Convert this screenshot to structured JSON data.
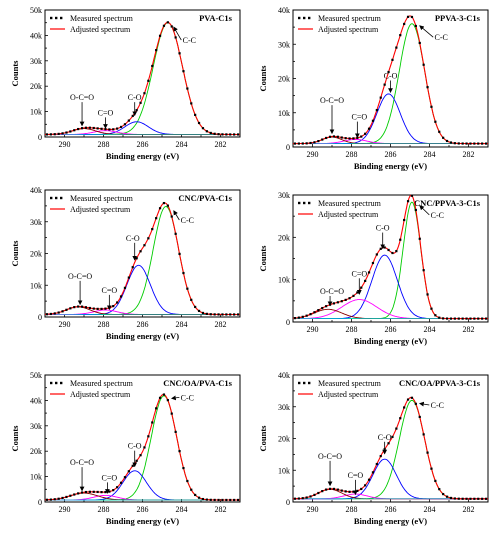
{
  "figure": {
    "panels": [
      "PVA-C1s",
      "PPVA-3-C1s",
      "CNC/PVA-C1s",
      "CNC/PPVA-3-C1s",
      "CNC/OA/PVA-C1s",
      "CNC/OA/PPVA-3-C1s"
    ]
  },
  "chart_data": [
    {
      "type": "line",
      "title": "PVA-C1s",
      "xlabel": "Binding energy (eV)",
      "ylabel": "Counts",
      "xlim": [
        291,
        281
      ],
      "ylim": [
        0,
        50000
      ],
      "xticks": [
        "290",
        "288",
        "286",
        "284",
        "282"
      ],
      "yticks": [
        "0",
        "10k",
        "20k",
        "30k",
        "40k",
        "50k"
      ],
      "legend": [
        "Measured spectrum",
        "Adjusted spectrum"
      ],
      "legend_position": "top-left",
      "baseline": 1000,
      "peaks": [
        {
          "name": "C-C",
          "center": 284.7,
          "height": 44000,
          "width": 0.75,
          "color": "#00cc00"
        },
        {
          "name": "C-O",
          "center": 286.3,
          "height": 5000,
          "width": 0.6,
          "color": "#0000ff"
        },
        {
          "name": "C=O",
          "center": 287.9,
          "height": 1500,
          "width": 0.6,
          "color": "#ff00ff"
        },
        {
          "name": "O-C=O",
          "center": 289.0,
          "height": 2300,
          "width": 0.6,
          "color": "#8b0000"
        }
      ],
      "annotations": [
        "C-C",
        "C-O",
        "C=O",
        "O-C=O"
      ]
    },
    {
      "type": "line",
      "title": "PPVA-3-C1s",
      "xlabel": "Binding energy (eV)",
      "ylabel": "Counts",
      "xlim": [
        291,
        281
      ],
      "ylim": [
        0,
        40000
      ],
      "xticks": [
        "290",
        "288",
        "286",
        "284",
        "282"
      ],
      "yticks": [
        "0",
        "10k",
        "20k",
        "30k",
        "40k"
      ],
      "legend": [
        "Measured spectrum",
        "Adjusted spectrum"
      ],
      "legend_position": "top-left",
      "baseline": 1000,
      "peaks": [
        {
          "name": "C-C",
          "center": 284.9,
          "height": 35000,
          "width": 0.65,
          "color": "#00cc00"
        },
        {
          "name": "C-O",
          "center": 286.1,
          "height": 14500,
          "width": 0.6,
          "color": "#0000ff"
        },
        {
          "name": "C=O",
          "center": 287.8,
          "height": 1200,
          "width": 0.6,
          "color": "#ff00ff"
        },
        {
          "name": "O-C=O",
          "center": 289.0,
          "height": 1900,
          "width": 0.5,
          "color": "#8b0000"
        }
      ],
      "annotations": [
        "C-C",
        "C-O",
        "C=O",
        "O-C=O"
      ]
    },
    {
      "type": "line",
      "title": "CNC/PVA-C1s",
      "xlabel": "Binding energy (eV)",
      "ylabel": "Counts",
      "xlim": [
        291,
        281
      ],
      "ylim": [
        0,
        40000
      ],
      "xticks": [
        "290",
        "288",
        "286",
        "284",
        "282"
      ],
      "yticks": [
        "0",
        "10k",
        "20k",
        "30k",
        "40k"
      ],
      "legend": [
        "Measured spectrum",
        "Adjusted spectrum"
      ],
      "legend_position": "top-left",
      "baseline": 800,
      "peaks": [
        {
          "name": "C-C",
          "center": 284.8,
          "height": 34000,
          "width": 0.65,
          "color": "#00cc00"
        },
        {
          "name": "C-O",
          "center": 286.2,
          "height": 15500,
          "width": 0.6,
          "color": "#0000ff"
        },
        {
          "name": "C=O",
          "center": 287.9,
          "height": 1400,
          "width": 0.6,
          "color": "#ff00ff"
        },
        {
          "name": "O-C=O",
          "center": 289.3,
          "height": 2400,
          "width": 0.6,
          "color": "#8b0000"
        }
      ],
      "annotations": [
        "C-C",
        "C-O",
        "C=O",
        "O-C=O"
      ]
    },
    {
      "type": "line",
      "title": "CNC/PPVA-3-C1s",
      "xlabel": "Binding energy (eV)",
      "ylabel": "Counts",
      "xlim": [
        291,
        281
      ],
      "ylim": [
        0,
        30000
      ],
      "xticks": [
        "290",
        "288",
        "286",
        "284",
        "282"
      ],
      "yticks": [
        "0",
        "10k",
        "20k",
        "30k"
      ],
      "legend": [
        "Measured spectrum",
        "Adjusted spectrum"
      ],
      "legend_position": "top-left",
      "baseline": 800,
      "peaks": [
        {
          "name": "C-C",
          "center": 284.9,
          "height": 27500,
          "width": 0.45,
          "color": "#00cc00"
        },
        {
          "name": "C-O",
          "center": 286.3,
          "height": 15000,
          "width": 0.65,
          "color": "#0000ff"
        },
        {
          "name": "C=O",
          "center": 287.6,
          "height": 4500,
          "width": 0.9,
          "color": "#ff00ff"
        },
        {
          "name": "O-C=O",
          "center": 289.2,
          "height": 2200,
          "width": 0.7,
          "color": "#8b0000"
        }
      ],
      "annotations": [
        "C-C",
        "C-O",
        "C=O",
        "O-C=O"
      ]
    },
    {
      "type": "line",
      "title": "CNC/OA/PVA-C1s",
      "xlabel": "Binding energy (eV)",
      "ylabel": "Counts",
      "xlim": [
        291,
        281
      ],
      "ylim": [
        0,
        50000
      ],
      "xticks": [
        "290",
        "288",
        "286",
        "284",
        "282"
      ],
      "yticks": [
        "0",
        "10k",
        "20k",
        "30k",
        "40k",
        "50k"
      ],
      "legend": [
        "Measured spectrum",
        "Adjusted spectrum"
      ],
      "legend_position": "top-left",
      "baseline": 800,
      "peaks": [
        {
          "name": "C-C",
          "center": 284.9,
          "height": 41000,
          "width": 0.65,
          "color": "#00cc00"
        },
        {
          "name": "C-O",
          "center": 286.4,
          "height": 11500,
          "width": 0.6,
          "color": "#0000ff"
        },
        {
          "name": "C=O",
          "center": 287.9,
          "height": 1800,
          "width": 0.6,
          "color": "#ff00ff"
        },
        {
          "name": "O-C=O",
          "center": 289.0,
          "height": 2700,
          "width": 0.7,
          "color": "#8b0000"
        }
      ],
      "annotations": [
        "C-C",
        "C-O",
        "C=O",
        "O-C=O"
      ]
    },
    {
      "type": "line",
      "title": "CNC/OA/PPVA-3-C1s",
      "xlabel": "Binding energy (eV)",
      "ylabel": "Counts",
      "xlim": [
        291,
        281
      ],
      "ylim": [
        0,
        40000
      ],
      "xticks": [
        "290",
        "288",
        "286",
        "284",
        "282"
      ],
      "yticks": [
        "0",
        "10k",
        "20k",
        "30k",
        "40k"
      ],
      "legend": [
        "Measured spectrum",
        "Adjusted spectrum"
      ],
      "legend_position": "top-left",
      "baseline": 1000,
      "peaks": [
        {
          "name": "C-C",
          "center": 284.9,
          "height": 31000,
          "width": 0.65,
          "color": "#00cc00"
        },
        {
          "name": "C-O",
          "center": 286.3,
          "height": 12500,
          "width": 0.6,
          "color": "#0000ff"
        },
        {
          "name": "C=O",
          "center": 287.8,
          "height": 1500,
          "width": 0.6,
          "color": "#ff00ff"
        },
        {
          "name": "O-C=O",
          "center": 289.1,
          "height": 3000,
          "width": 0.6,
          "color": "#8b0000"
        }
      ],
      "annotations": [
        "C-C",
        "C-O",
        "C=O",
        "O-C=O"
      ]
    }
  ],
  "colors": {
    "measured": "#000000",
    "adjusted": "#ff0000",
    "background": "#ffffff"
  }
}
